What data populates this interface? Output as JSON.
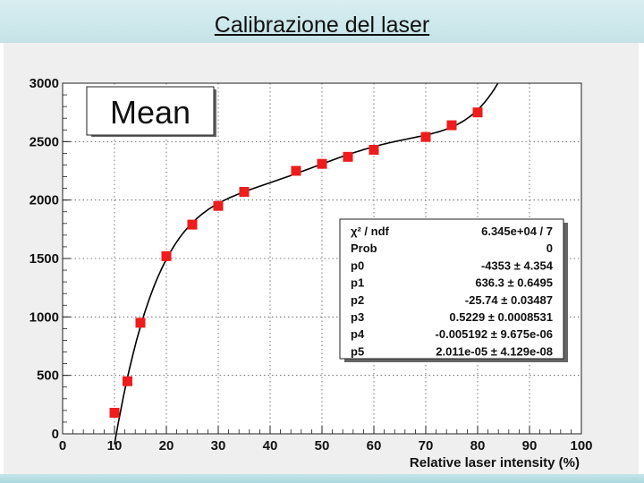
{
  "slide": {
    "title": "Calibrazione del laser"
  },
  "chart_data": {
    "type": "scatter",
    "title": "Mean",
    "xlabel": "Relative laser intensity (%)",
    "ylabel": "",
    "xlim": [
      0,
      100
    ],
    "ylim": [
      0,
      3000
    ],
    "xticks": [
      0,
      10,
      20,
      30,
      40,
      50,
      60,
      70,
      80,
      90,
      100
    ],
    "yticks": [
      0,
      500,
      1000,
      1500,
      2000,
      2500,
      3000
    ],
    "grid": true,
    "points": {
      "x": [
        10,
        12.5,
        15,
        20,
        25,
        30,
        35,
        45,
        50,
        55,
        60,
        70,
        75,
        80
      ],
      "y": [
        180,
        450,
        950,
        1520,
        1790,
        1950,
        2070,
        2250,
        2310,
        2370,
        2430,
        2540,
        2640,
        2750
      ]
    },
    "fit_curve": {
      "function": "pol5",
      "x_start": 10
    },
    "stats_box": [
      {
        "name": "χ² / ndf",
        "value": "6.345e+04 / 7"
      },
      {
        "name": "Prob",
        "value": "0"
      },
      {
        "name": "p0",
        "value": "-4353 ± 4.354"
      },
      {
        "name": "p1",
        "value": "636.3 ± 0.6495"
      },
      {
        "name": "p2",
        "value": "-25.74 ± 0.03487"
      },
      {
        "name": "p3",
        "value": "0.5229 ± 0.0008531"
      },
      {
        "name": "p4",
        "value": "-0.005192 ± 9.675e-06"
      },
      {
        "name": "p5",
        "value": "2.011e-05 ± 4.129e-08"
      }
    ],
    "marker_color": "#ee1c1c",
    "curve_color": "#000000"
  }
}
